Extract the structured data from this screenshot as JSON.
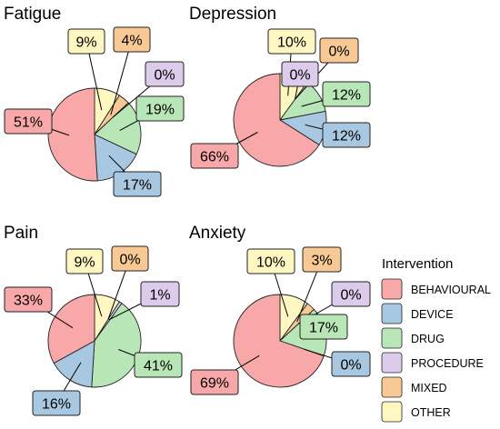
{
  "colors": {
    "BEHAVIOURAL": "#f8a8a8",
    "DEVICE": "#a8c8e2",
    "DRUG": "#b9e6b7",
    "PROCEDURE": "#dccbea",
    "MIXED": "#f8c994",
    "OTHER": "#fff7c2"
  },
  "chart_data": {
    "type": "pie",
    "legend": {
      "title": "Intervention",
      "placement": "bottom-right",
      "entries": [
        "BEHAVIOURAL",
        "DEVICE",
        "DRUG",
        "PROCEDURE",
        "MIXED",
        "OTHER"
      ]
    },
    "charts": [
      {
        "title": "Fatigue",
        "slices": [
          {
            "category": "BEHAVIOURAL",
            "value": 51,
            "label": "51%"
          },
          {
            "category": "DEVICE",
            "value": 17,
            "label": "17%"
          },
          {
            "category": "DRUG",
            "value": 19,
            "label": "19%"
          },
          {
            "category": "PROCEDURE",
            "value": 0,
            "label": "0%"
          },
          {
            "category": "MIXED",
            "value": 4,
            "label": "4%"
          },
          {
            "category": "OTHER",
            "value": 9,
            "label": "9%"
          }
        ]
      },
      {
        "title": "Depression",
        "slices": [
          {
            "category": "BEHAVIOURAL",
            "value": 66,
            "label": "66%"
          },
          {
            "category": "DEVICE",
            "value": 12,
            "label": "12%"
          },
          {
            "category": "DRUG",
            "value": 12,
            "label": "12%"
          },
          {
            "category": "PROCEDURE",
            "value": 0,
            "label": "0%"
          },
          {
            "category": "MIXED",
            "value": 0,
            "label": "0%"
          },
          {
            "category": "OTHER",
            "value": 10,
            "label": "10%"
          }
        ]
      },
      {
        "title": "Pain",
        "slices": [
          {
            "category": "BEHAVIOURAL",
            "value": 33,
            "label": "33%"
          },
          {
            "category": "DEVICE",
            "value": 16,
            "label": "16%"
          },
          {
            "category": "DRUG",
            "value": 41,
            "label": "41%"
          },
          {
            "category": "PROCEDURE",
            "value": 1,
            "label": "1%"
          },
          {
            "category": "MIXED",
            "value": 0,
            "label": "0%"
          },
          {
            "category": "OTHER",
            "value": 9,
            "label": "9%"
          }
        ]
      },
      {
        "title": "Anxiety",
        "slices": [
          {
            "category": "BEHAVIOURAL",
            "value": 69,
            "label": "69%"
          },
          {
            "category": "DEVICE",
            "value": 0,
            "label": "0%"
          },
          {
            "category": "DRUG",
            "value": 17,
            "label": "17%"
          },
          {
            "category": "PROCEDURE",
            "value": 0,
            "label": "0%"
          },
          {
            "category": "MIXED",
            "value": 3,
            "label": "3%"
          },
          {
            "category": "OTHER",
            "value": 10,
            "label": "10%"
          }
        ]
      }
    ]
  }
}
